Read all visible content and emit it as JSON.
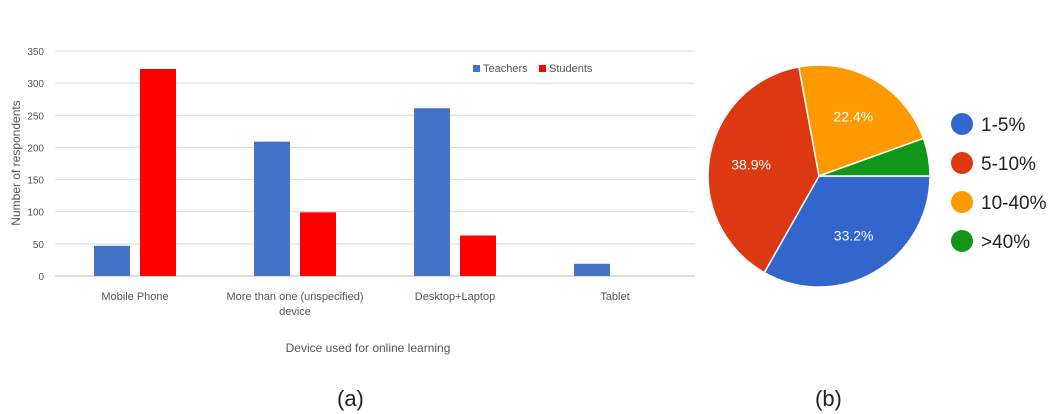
{
  "captions": {
    "a": "(a)",
    "b": "(b)"
  },
  "chart_data": [
    {
      "type": "bar",
      "xlabel": "Device used for online learning",
      "ylabel": "Number of respondents",
      "ylim": [
        0,
        350
      ],
      "yticks": [
        0,
        50,
        100,
        150,
        200,
        250,
        300,
        350
      ],
      "grid": true,
      "legend_position": "top-right",
      "categories": [
        [
          "Mobile Phone"
        ],
        [
          "More than one (unspecified)",
          "device"
        ],
        [
          "Desktop+Laptop"
        ],
        [
          "Tablet"
        ]
      ],
      "series": [
        {
          "name": "Teachers",
          "color": "#4472c4",
          "values": [
            47,
            209,
            261,
            19
          ]
        },
        {
          "name": "Students",
          "color": "#ff0000",
          "values": [
            322,
            99,
            63,
            0
          ]
        }
      ]
    },
    {
      "type": "pie",
      "legend_position": "right",
      "slices": [
        {
          "label": "1-5%",
          "value": 33.2,
          "display": "33.2%",
          "color": "#3366cc"
        },
        {
          "label": "5-10%",
          "value": 38.9,
          "display": "38.9%",
          "color": "#dc3912"
        },
        {
          "label": "10-40%",
          "value": 22.4,
          "display": "22.4%",
          "color": "#ff9900"
        },
        {
          "label": ">40%",
          "value": 5.5,
          "display": "",
          "color": "#109618"
        }
      ]
    }
  ]
}
